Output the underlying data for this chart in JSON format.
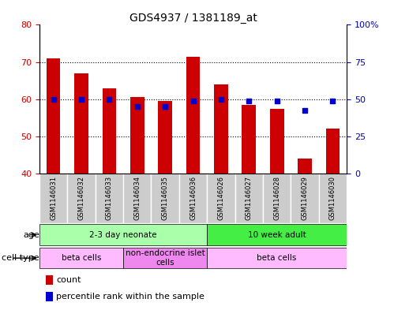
{
  "title": "GDS4937 / 1381189_at",
  "samples": [
    "GSM1146031",
    "GSM1146032",
    "GSM1146033",
    "GSM1146034",
    "GSM1146035",
    "GSM1146036",
    "GSM1146026",
    "GSM1146027",
    "GSM1146028",
    "GSM1146029",
    "GSM1146030"
  ],
  "bar_values": [
    71,
    67,
    63,
    60.5,
    59.5,
    71.5,
    64,
    58.5,
    57.5,
    44,
    52
  ],
  "pct_y": [
    60,
    60,
    60,
    58,
    58,
    59.5,
    60,
    59.5,
    59.5,
    57,
    59.5
  ],
  "bar_bottom": 40,
  "ylim_left": [
    40,
    80
  ],
  "ylim_right": [
    0,
    100
  ],
  "left_ticks": [
    40,
    50,
    60,
    70,
    80
  ],
  "right_ticks": [
    0,
    25,
    50,
    75,
    100
  ],
  "right_tick_labels": [
    "0",
    "25",
    "50",
    "75",
    "100%"
  ],
  "bar_color": "#cc0000",
  "dot_color": "#0000cc",
  "plot_bg": "#ffffff",
  "label_bg": "#cccccc",
  "age_groups": [
    {
      "label": "2-3 day neonate",
      "start": 0,
      "end": 6,
      "color": "#aaffaa"
    },
    {
      "label": "10 week adult",
      "start": 6,
      "end": 11,
      "color": "#44ee44"
    }
  ],
  "cell_type_groups": [
    {
      "label": "beta cells",
      "start": 0,
      "end": 3,
      "color": "#ffbbff"
    },
    {
      "label": "non-endocrine islet\ncells",
      "start": 3,
      "end": 6,
      "color": "#ee88ee"
    },
    {
      "label": "beta cells",
      "start": 6,
      "end": 11,
      "color": "#ffbbff"
    }
  ],
  "legend_bar_label": "count",
  "legend_dot_label": "percentile rank within the sample",
  "left_axis_color": "#cc0000",
  "right_axis_color": "#0000cc"
}
